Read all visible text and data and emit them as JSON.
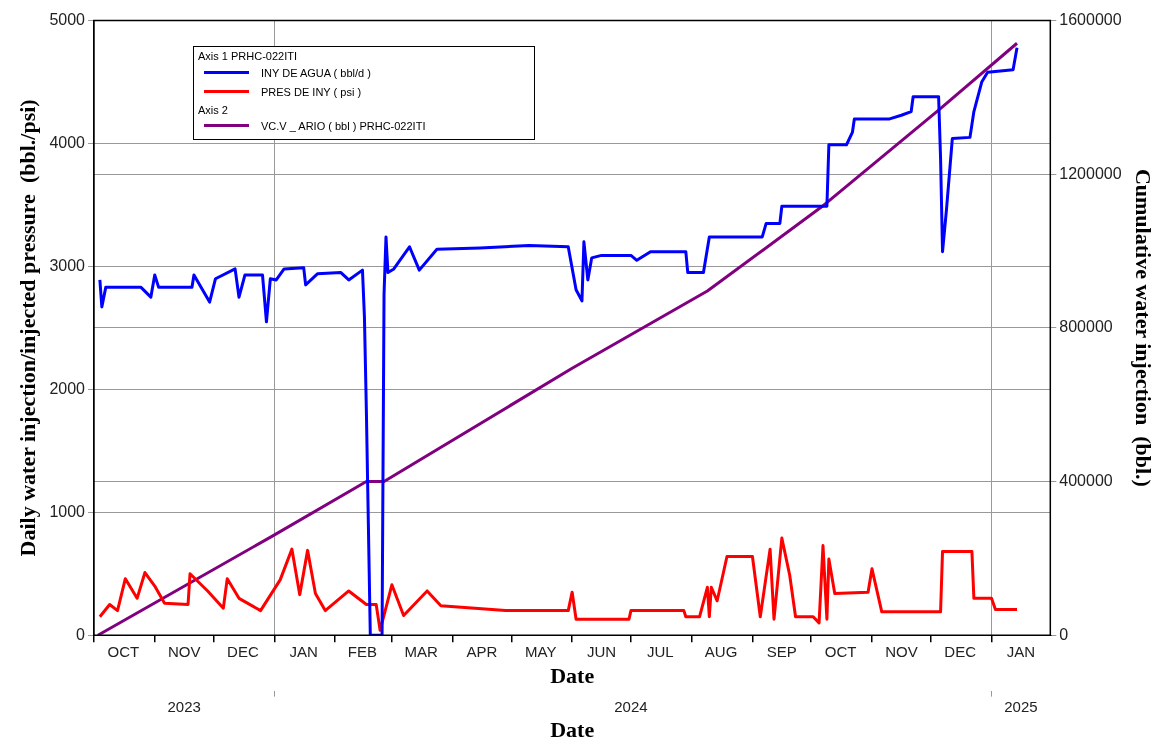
{
  "chart_data": {
    "type": "line",
    "xlabel": "Date",
    "x2label": "Date",
    "ylabel": "Daily water injection/injected pressure  (bbl./psi)",
    "y2label": "Cumulative water injection  (bbl.)",
    "legend_title": "Axis 1  PRHC-022ITI",
    "annotations": [
      "Axis 2"
    ],
    "xlim": [
      "2023-10-01",
      "2025-01-31"
    ],
    "xticks": [
      {
        "value": "2023-10-01",
        "label": null
      },
      {
        "value": "2023-10-16",
        "label": "OCT"
      },
      {
        "value": "2023-11-01",
        "label": null
      },
      {
        "value": "2023-11-16",
        "label": "NOV"
      },
      {
        "value": "2023-12-01",
        "label": null
      },
      {
        "value": "2023-12-16",
        "label": "DEC"
      },
      {
        "value": "2024-01-01",
        "label": null
      },
      {
        "value": "2024-01-16",
        "label": "JAN"
      },
      {
        "value": "2024-02-01",
        "label": null
      },
      {
        "value": "2024-02-15",
        "label": "FEB"
      },
      {
        "value": "2024-03-01",
        "label": null
      },
      {
        "value": "2024-03-16",
        "label": "MAR"
      },
      {
        "value": "2024-04-01",
        "label": null
      },
      {
        "value": "2024-04-16",
        "label": "APR"
      },
      {
        "value": "2024-05-01",
        "label": null
      },
      {
        "value": "2024-05-16",
        "label": "MAY"
      },
      {
        "value": "2024-06-01",
        "label": null
      },
      {
        "value": "2024-06-16",
        "label": "JUN"
      },
      {
        "value": "2024-07-01",
        "label": null
      },
      {
        "value": "2024-07-16",
        "label": "JUL"
      },
      {
        "value": "2024-08-01",
        "label": null
      },
      {
        "value": "2024-08-16",
        "label": "AUG"
      },
      {
        "value": "2024-09-01",
        "label": null
      },
      {
        "value": "2024-09-16",
        "label": "SEP"
      },
      {
        "value": "2024-10-01",
        "label": null
      },
      {
        "value": "2024-10-16",
        "label": "OCT"
      },
      {
        "value": "2024-11-01",
        "label": null
      },
      {
        "value": "2024-11-16",
        "label": "NOV"
      },
      {
        "value": "2024-12-01",
        "label": null
      },
      {
        "value": "2024-12-16",
        "label": "DEC"
      },
      {
        "value": "2025-01-01",
        "label": null
      },
      {
        "value": "2025-01-16",
        "label": "JAN"
      }
    ],
    "x2lim": [
      "2023-10-01",
      "2025-01-31"
    ],
    "x2ticks": [
      {
        "value": "2023-11-16",
        "label": "2023"
      },
      {
        "value": "2024-01-01",
        "label": null
      },
      {
        "value": "2024-07-01",
        "label": "2024"
      },
      {
        "value": "2025-01-01",
        "label": null
      },
      {
        "value": "2025-01-16",
        "label": "2025"
      }
    ],
    "ylim": [
      0,
      5000
    ],
    "yticks": [
      0,
      1000,
      2000,
      3000,
      4000,
      5000
    ],
    "y2lim": [
      0,
      1600000
    ],
    "y2ticks": [
      0,
      400000,
      800000,
      1200000,
      1600000
    ],
    "grid": true,
    "legend": "top left",
    "marker": "none",
    "line_style": "solid",
    "series": [
      {
        "name": "INY DE AGUA ( bbl/d )",
        "color": "#0000ff",
        "x": [
          "2023-10-04",
          "2023-10-05",
          "2023-10-07",
          "2023-10-25",
          "2023-10-30",
          "2023-11-01",
          "2023-11-03",
          "2023-11-20",
          "2023-11-21",
          "2023-11-29",
          "2023-12-02",
          "2023-12-12",
          "2023-12-14",
          "2023-12-17",
          "2023-12-26",
          "2023-12-28",
          "2023-12-30",
          "2024-01-02",
          "2024-01-06",
          "2024-01-16",
          "2024-01-17",
          "2024-01-23",
          "2024-02-04",
          "2024-02-08",
          "2024-02-15",
          "2024-02-16",
          "2024-02-17",
          "2024-02-19",
          "2024-02-25",
          "2024-02-26",
          "2024-02-27",
          "2024-02-28",
          "2024-03-02",
          "2024-03-10",
          "2024-03-15",
          "2024-03-24",
          "2024-04-15",
          "2024-05-10",
          "2024-05-30",
          "2024-06-03",
          "2024-06-06",
          "2024-06-07",
          "2024-06-09",
          "2024-06-11",
          "2024-06-16",
          "2024-07-01",
          "2024-07-04",
          "2024-07-11",
          "2024-07-29",
          "2024-07-30",
          "2024-08-07",
          "2024-08-10",
          "2024-09-06",
          "2024-09-08",
          "2024-09-15",
          "2024-09-16",
          "2024-10-09",
          "2024-10-10",
          "2024-10-19",
          "2024-10-22",
          "2024-10-23",
          "2024-11-10",
          "2024-11-16",
          "2024-11-21",
          "2024-11-22",
          "2024-12-05",
          "2024-12-06",
          "2024-12-07",
          "2024-12-09",
          "2024-12-12",
          "2024-12-21",
          "2024-12-23",
          "2024-12-27",
          "2024-12-30",
          "2025-01-12",
          "2025-01-14"
        ],
        "values": [
          2890,
          2670,
          2830,
          2830,
          2750,
          2930,
          2830,
          2830,
          2930,
          2710,
          2900,
          2980,
          2750,
          2930,
          2930,
          2550,
          2900,
          2890,
          2980,
          2990,
          2850,
          2940,
          2950,
          2890,
          2970,
          2590,
          1820,
          0,
          0,
          2770,
          3240,
          2950,
          2980,
          3160,
          2970,
          3140,
          3150,
          3170,
          3160,
          2810,
          2720,
          3200,
          2890,
          3070,
          3090,
          3090,
          3050,
          3120,
          3120,
          2950,
          2950,
          3240,
          3240,
          3350,
          3350,
          3490,
          3490,
          3990,
          3990,
          4090,
          4200,
          4200,
          4230,
          4260,
          4380,
          4380,
          3880,
          3120,
          3460,
          4040,
          4050,
          4260,
          4500,
          4580,
          4600,
          4780
        ]
      },
      {
        "name": "PRES DE INY ( psi )",
        "color": "#ff0000",
        "x": [
          "2023-10-04",
          "2023-10-09",
          "2023-10-13",
          "2023-10-17",
          "2023-10-23",
          "2023-10-27",
          "2023-11-01",
          "2023-11-06",
          "2023-11-18",
          "2023-11-19",
          "2023-11-28",
          "2023-12-06",
          "2023-12-08",
          "2023-12-14",
          "2023-12-25",
          "2024-01-04",
          "2024-01-10",
          "2024-01-14",
          "2024-01-18",
          "2024-01-22",
          "2024-01-27",
          "2024-02-08",
          "2024-02-17",
          "2024-02-22",
          "2024-02-24",
          "2024-03-01",
          "2024-03-07",
          "2024-03-19",
          "2024-03-26",
          "2024-04-28",
          "2024-05-30",
          "2024-06-01",
          "2024-06-03",
          "2024-06-30",
          "2024-07-01",
          "2024-07-28",
          "2024-07-29",
          "2024-08-05",
          "2024-08-09",
          "2024-08-10",
          "2024-08-11",
          "2024-08-14",
          "2024-08-19",
          "2024-09-01",
          "2024-09-05",
          "2024-09-10",
          "2024-09-12",
          "2024-09-16",
          "2024-09-20",
          "2024-09-23",
          "2024-10-02",
          "2024-10-05",
          "2024-10-07",
          "2024-10-09",
          "2024-10-10",
          "2024-10-13",
          "2024-10-30",
          "2024-11-01",
          "2024-11-06",
          "2024-12-06",
          "2024-12-07",
          "2024-12-22",
          "2024-12-23",
          "2025-01-01",
          "2025-01-03",
          "2025-01-14"
        ],
        "values": [
          150,
          250,
          200,
          460,
          300,
          510,
          400,
          260,
          250,
          500,
          360,
          220,
          460,
          300,
          200,
          450,
          700,
          330,
          690,
          340,
          200,
          360,
          250,
          250,
          40,
          410,
          160,
          360,
          240,
          200,
          200,
          350,
          130,
          130,
          200,
          200,
          150,
          150,
          390,
          150,
          390,
          280,
          640,
          640,
          150,
          700,
          130,
          790,
          490,
          150,
          150,
          100,
          730,
          130,
          620,
          340,
          350,
          540,
          190,
          190,
          680,
          680,
          300,
          300,
          210,
          210
        ]
      },
      {
        "name": "VC.V _ ARIO ( bbl ) PRHC-022ITI",
        "color": "#800080",
        "axis": "y2",
        "x": [
          "2023-10-03",
          "2023-12-31",
          "2024-02-17",
          "2024-02-26",
          "2024-06-01",
          "2024-08-09",
          "2024-10-06",
          "2024-12-05",
          "2025-01-14"
        ],
        "values": [
          0,
          258000,
          400000,
          400000,
          695000,
          896000,
          1114000,
          1367000,
          1541000
        ]
      }
    ]
  }
}
